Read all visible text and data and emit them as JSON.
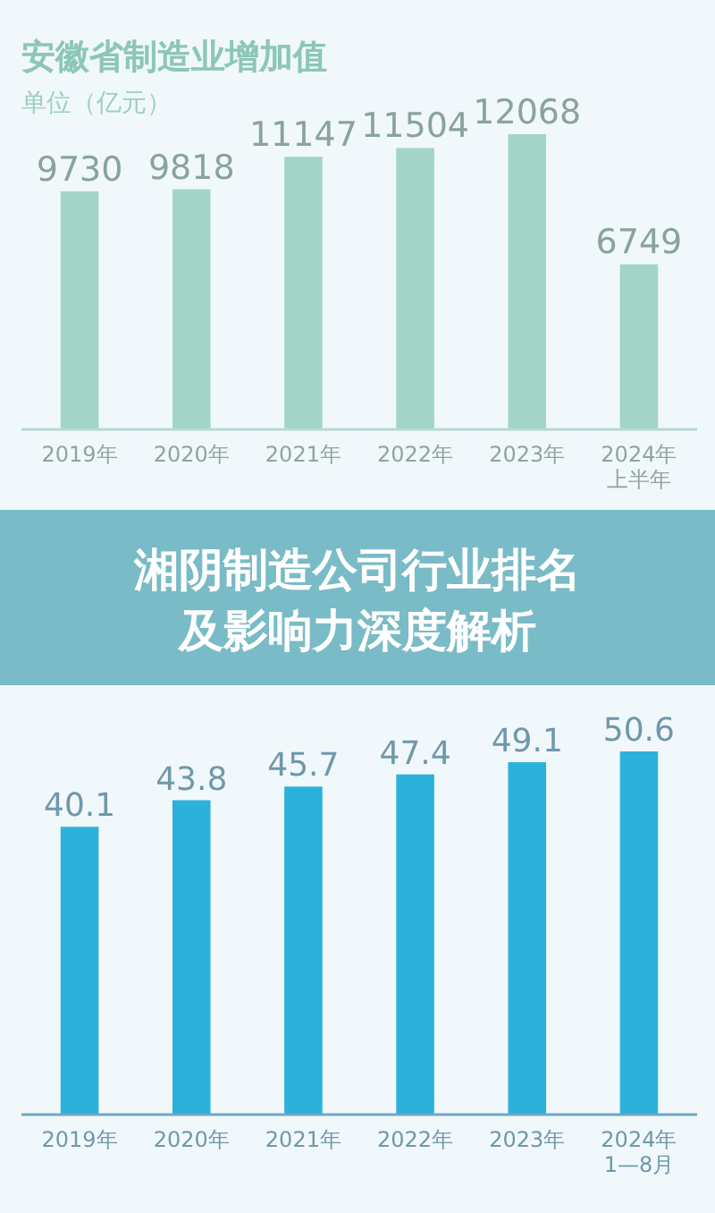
{
  "chart_data": [
    {
      "type": "bar",
      "title": "安徽省制造业增加值",
      "subtitle": "单位（亿元）",
      "categories": [
        "2019年",
        "2020年",
        "2021年",
        "2022年",
        "2023年",
        "2024年上半年"
      ],
      "values": [
        9730,
        9818,
        11147,
        11504,
        12068,
        6749
      ],
      "color": "#a3d5c6",
      "data_labels": true
    },
    {
      "type": "bar",
      "categories": [
        "2019年",
        "2020年",
        "2021年",
        "2022年",
        "2023年",
        "2024年1—8月"
      ],
      "values": [
        40.1,
        43.8,
        45.7,
        47.4,
        49.1,
        50.6
      ],
      "color": "#2cb2da",
      "data_labels": true,
      "annotations": [
        "湘阴制造公司行业排名及影响力深度解析"
      ]
    }
  ]
}
